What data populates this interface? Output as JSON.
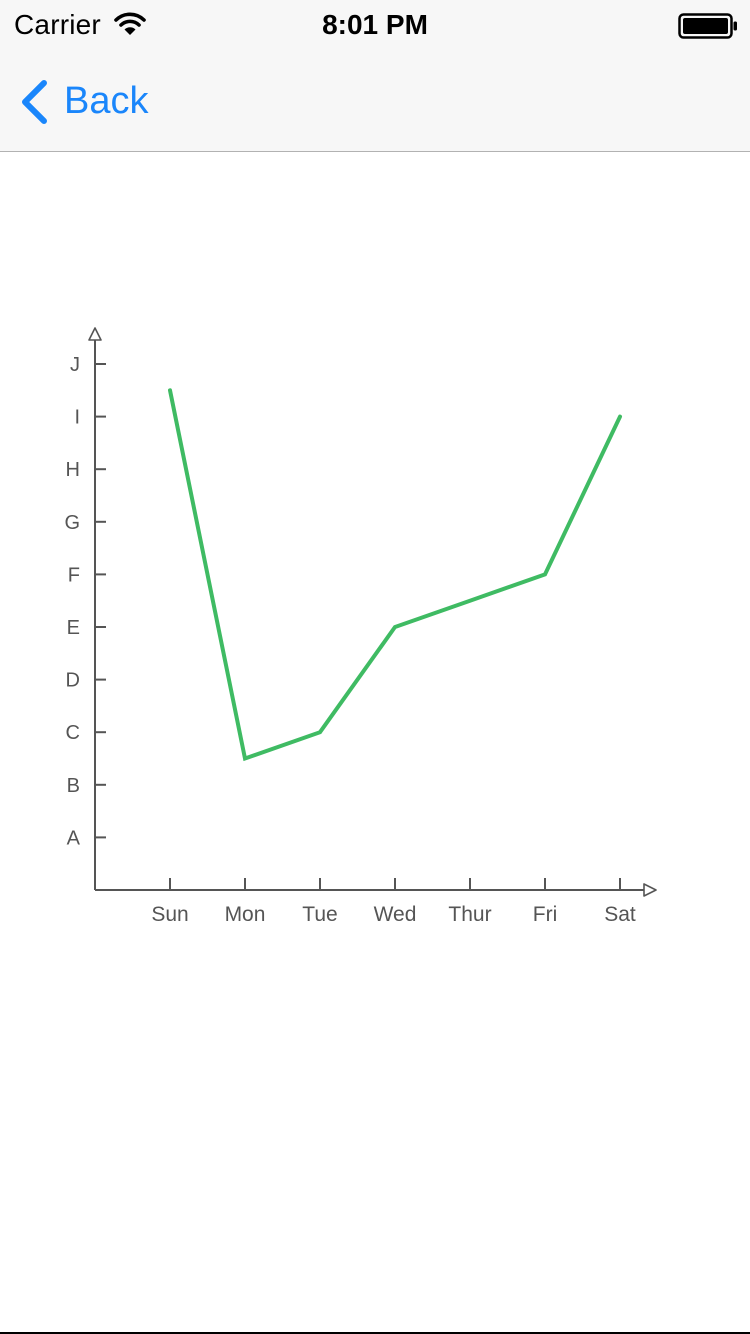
{
  "status_bar": {
    "carrier": "Carrier",
    "time": "8:01 PM",
    "wifi_icon": "wifi-icon",
    "battery_icon": "battery-full-icon"
  },
  "nav_bar": {
    "back_label": "Back",
    "back_icon": "chevron-left-icon",
    "accent_color": "#1a86fb"
  },
  "chart_data": {
    "type": "line",
    "categories": [
      "Sun",
      "Mon",
      "Tue",
      "Wed",
      "Thur",
      "Fri",
      "Sat"
    ],
    "y_categories": [
      "A",
      "B",
      "C",
      "D",
      "E",
      "F",
      "G",
      "H",
      "I",
      "J"
    ],
    "series": [
      {
        "values": [
          9.5,
          2.5,
          3,
          5,
          5.5,
          6,
          9
        ],
        "color": "#3fbb63"
      }
    ],
    "title": "",
    "xlabel": "",
    "ylabel": "",
    "grid": false,
    "legend": "none"
  }
}
